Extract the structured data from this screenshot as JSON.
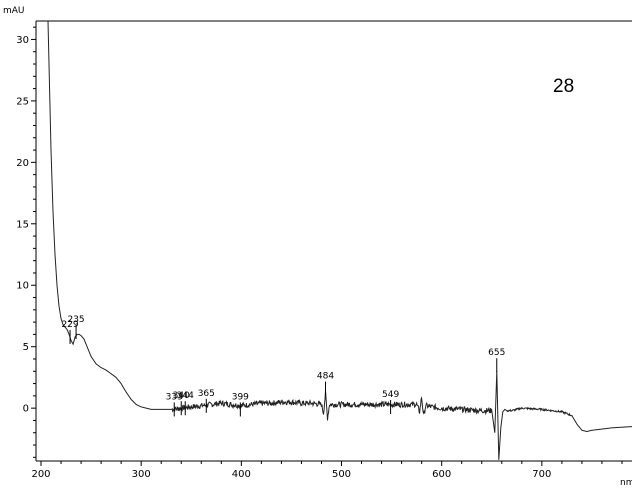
{
  "chart_data": {
    "type": "line",
    "ylabel": "mAU",
    "xlabel": "nm",
    "annotation": "28",
    "xlim": [
      195,
      790
    ],
    "ylim": [
      -4.3,
      31.5
    ],
    "x_ticks": [
      200,
      300,
      400,
      500,
      600,
      700
    ],
    "y_ticks": [
      0,
      5,
      10,
      15,
      20,
      25,
      30
    ],
    "grid": false,
    "peaks": [
      {
        "label": "229",
        "x": 229,
        "y": 6.2
      },
      {
        "label": "235",
        "x": 235,
        "y": 6.6
      },
      {
        "label": "333",
        "x": 333,
        "y": 0.3
      },
      {
        "label": "340",
        "x": 340,
        "y": 0.4
      },
      {
        "label": "344",
        "x": 344,
        "y": 0.4
      },
      {
        "label": "365",
        "x": 365,
        "y": 0.6
      },
      {
        "label": "399",
        "x": 399,
        "y": 0.3
      },
      {
        "label": "484",
        "x": 484,
        "y": 2.0
      },
      {
        "label": "549",
        "x": 549,
        "y": 0.5
      },
      {
        "label": "655",
        "x": 655,
        "y": 3.9
      }
    ],
    "series": [
      {
        "x": [
          207,
          208,
          209,
          210,
          212,
          214,
          216,
          218,
          220,
          222,
          224,
          226,
          228,
          230,
          232,
          234,
          236,
          238,
          240,
          243,
          246,
          250,
          255,
          260,
          265,
          270,
          275,
          280,
          285,
          290,
          295,
          300,
          305,
          310,
          320,
          330,
          340,
          350,
          360,
          370,
          380,
          390,
          400,
          410,
          420,
          430,
          440,
          450,
          460,
          470,
          480,
          482,
          484,
          486,
          488,
          490,
          500,
          520,
          540,
          560,
          575,
          578,
          580,
          582,
          584,
          590,
          600,
          620,
          640,
          650,
          653,
          655,
          657,
          659,
          661,
          663,
          665,
          670,
          680,
          700,
          720,
          730,
          735,
          740,
          745,
          750,
          760,
          770,
          790
        ],
        "y": [
          31.5,
          28,
          24.5,
          21,
          16,
          12.5,
          10,
          8.3,
          7.3,
          6.8,
          6.6,
          6.4,
          6.0,
          5.5,
          5.2,
          5.8,
          6.0,
          6.0,
          5.9,
          5.6,
          5.0,
          4.2,
          3.6,
          3.3,
          3.1,
          2.8,
          2.5,
          2.0,
          1.3,
          0.7,
          0.3,
          0.1,
          0.0,
          -0.1,
          -0.1,
          -0.1,
          0.0,
          0.1,
          0.2,
          0.3,
          0.4,
          0.3,
          0.2,
          0.3,
          0.4,
          0.4,
          0.5,
          0.5,
          0.4,
          0.4,
          0.3,
          -0.4,
          1.2,
          -0.8,
          0.3,
          0.3,
          0.3,
          0.3,
          0.3,
          0.3,
          0.3,
          -0.3,
          0.9,
          -0.6,
          0.2,
          0.1,
          0.0,
          -0.1,
          -0.2,
          -0.2,
          -2.0,
          3.0,
          -4.2,
          -1.6,
          -0.3,
          -0.1,
          -0.2,
          -0.2,
          0.0,
          -0.1,
          -0.3,
          -0.6,
          -1.3,
          -1.8,
          -1.9,
          -1.8,
          -1.7,
          -1.6,
          -1.5
        ]
      }
    ]
  }
}
